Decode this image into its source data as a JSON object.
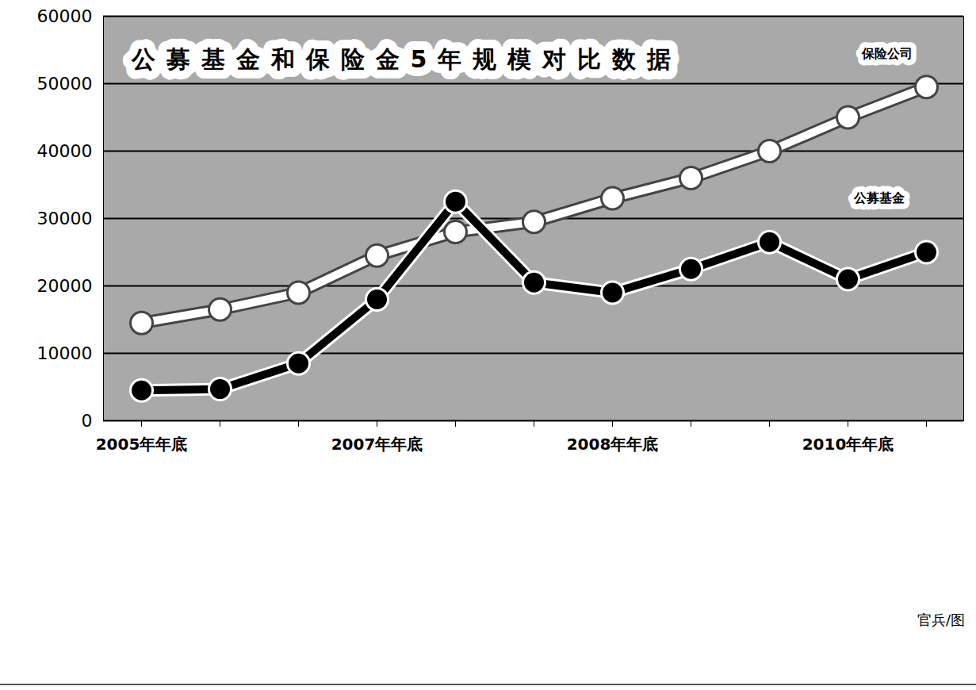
{
  "chart_data": {
    "type": "line",
    "title": "公募基金和保险金5年规模对比数据",
    "categories": [
      "2005年年底",
      null,
      null,
      "2007年年底",
      null,
      null,
      "2008年年底",
      null,
      null,
      "2010年年底",
      null
    ],
    "series": [
      {
        "name": "保险公司",
        "color": "#ffffff",
        "marker": "circle",
        "values": [
          14500,
          16500,
          19000,
          24500,
          28000,
          29500,
          33000,
          36000,
          40000,
          45000,
          49500
        ]
      },
      {
        "name": "公募基金",
        "color": "#000000",
        "marker": "circle",
        "values": [
          4500,
          4700,
          8500,
          18000,
          32500,
          20500,
          19000,
          22500,
          26500,
          21000,
          25000
        ]
      }
    ],
    "ylim": [
      0,
      60000
    ],
    "yticks": [
      0,
      10000,
      20000,
      30000,
      40000,
      50000,
      60000
    ],
    "grid": true,
    "credit": "官兵/图"
  }
}
